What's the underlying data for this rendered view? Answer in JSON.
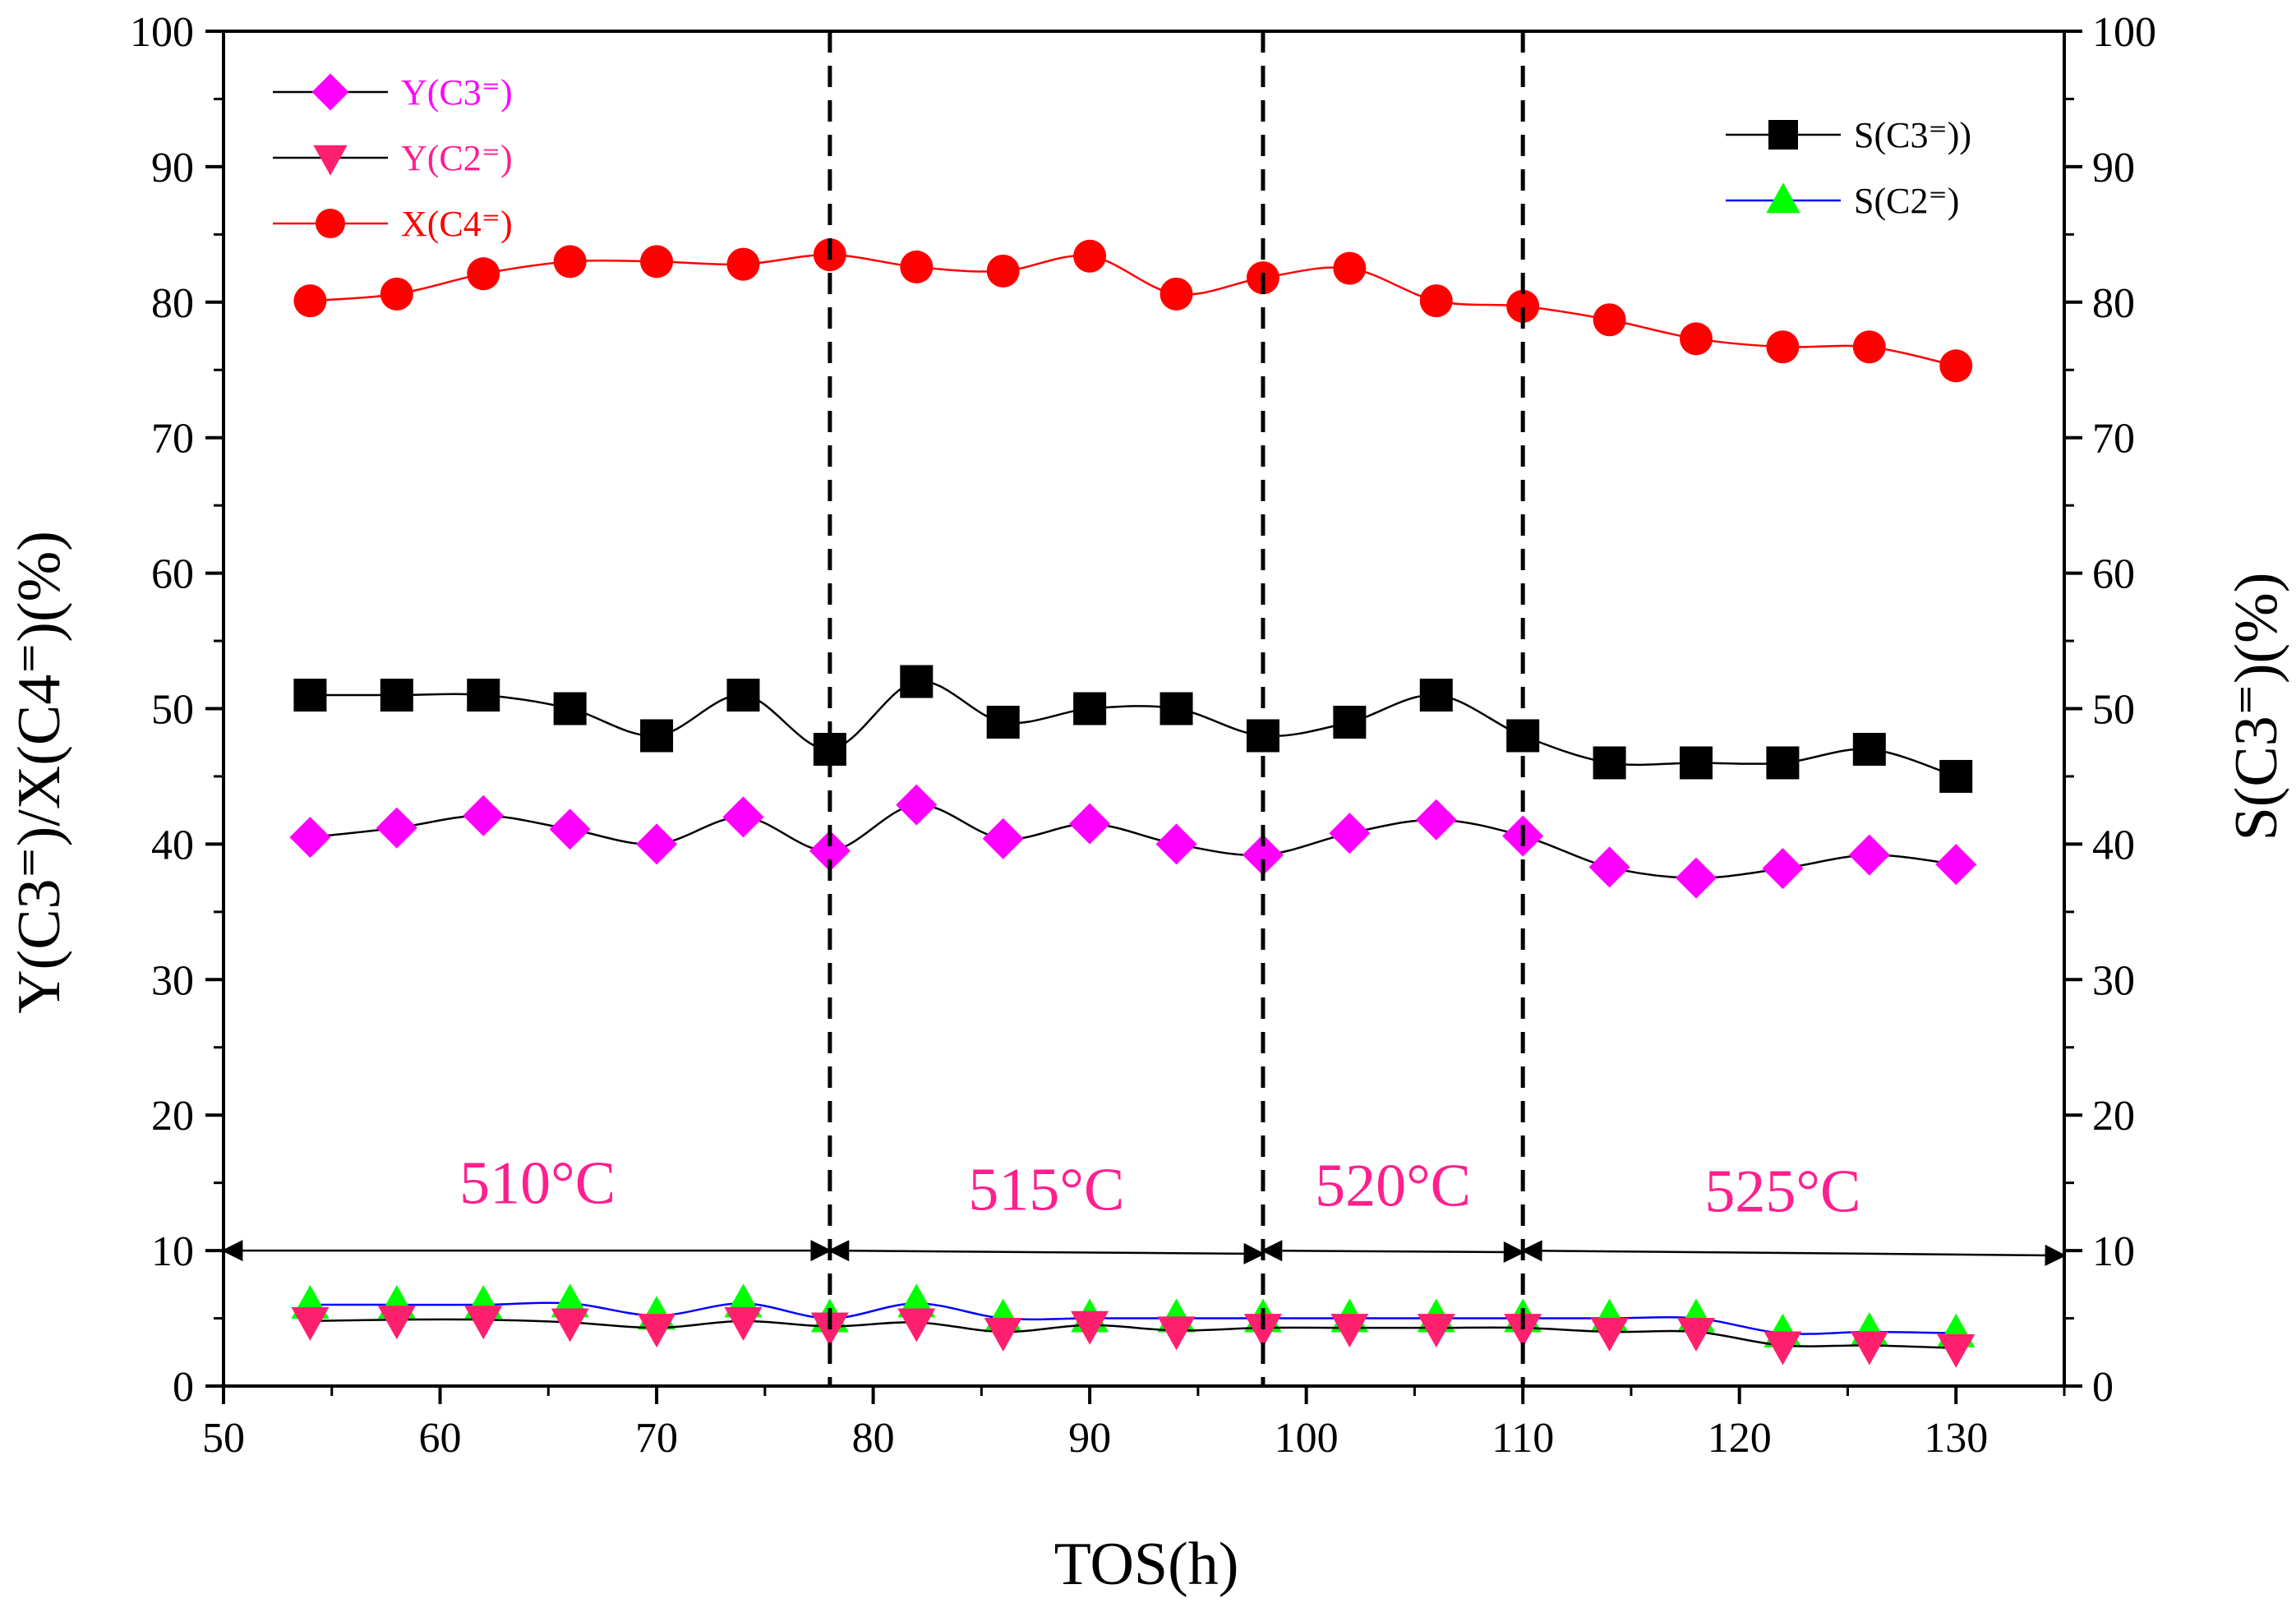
{
  "chart_data": {
    "type": "line",
    "xlabel": "TOS(h)",
    "ylabel_left": "Y(C3⁼)/X(C4⁼)(%)",
    "ylabel_right": "S(C3⁼)(%)",
    "xlim": [
      50,
      135
    ],
    "ylim": [
      0,
      100
    ],
    "x_ticks": [
      "50",
      "60",
      "70",
      "80",
      "90",
      "100",
      "110",
      "120",
      "130"
    ],
    "y_ticks": [
      "0",
      "10",
      "20",
      "30",
      "40",
      "50",
      "60",
      "70",
      "80",
      "90",
      "100"
    ],
    "x": [
      54,
      58,
      62,
      66,
      70,
      74,
      78,
      82,
      86,
      90,
      94,
      98,
      102,
      106,
      110,
      114,
      118,
      122,
      126,
      130
    ],
    "series": [
      {
        "name": "X(C4⁼)",
        "marker": "circle",
        "color": "#ff0000",
        "line_color": "#ff0000",
        "label_color": "#ff0000",
        "values": [
          80.1,
          80.6,
          82.1,
          83.0,
          83.0,
          82.8,
          83.5,
          82.6,
          82.3,
          83.4,
          80.6,
          81.8,
          82.5,
          80.1,
          79.7,
          78.7,
          77.3,
          76.7,
          76.7,
          75.3
        ]
      },
      {
        "name": "S(C3⁼))",
        "marker": "square",
        "color": "#000000",
        "line_color": "#000000",
        "label_color": "#000000",
        "values": [
          51,
          51,
          51,
          50,
          48,
          51,
          47,
          52,
          49,
          50,
          50,
          48,
          49,
          51,
          48,
          46,
          46,
          46,
          47,
          45
        ]
      },
      {
        "name": "Y(C3⁼)",
        "marker": "diamond",
        "color": "#ff00ff",
        "line_color": "#000000",
        "label_color": "#ff00ff",
        "values": [
          40.5,
          41.2,
          42.1,
          41.1,
          40.0,
          42.0,
          39.5,
          42.9,
          40.4,
          41.5,
          40.0,
          39.2,
          40.8,
          41.8,
          40.6,
          38.3,
          37.5,
          38.2,
          39.2,
          38.5
        ]
      },
      {
        "name": "S(C2⁼)",
        "marker": "triangle-up",
        "color": "#00ff00",
        "line_color": "#0000ff",
        "label_color": "#000000",
        "values": [
          6.0,
          6.0,
          6.0,
          6.1,
          5.2,
          6.1,
          5.0,
          6.1,
          5.0,
          5.0,
          5.0,
          5.0,
          5.0,
          5.0,
          5.0,
          5.0,
          5.0,
          3.9,
          4.0,
          3.9
        ]
      },
      {
        "name": "Y(C2⁼)",
        "marker": "triangle-down",
        "color": "#ff1f6f",
        "line_color": "#000000",
        "label_color": "#ff1f8f",
        "values": [
          4.8,
          4.9,
          4.9,
          4.7,
          4.3,
          4.8,
          4.4,
          4.7,
          4.0,
          4.5,
          4.1,
          4.3,
          4.3,
          4.3,
          4.3,
          4.0,
          4.0,
          3.0,
          3.0,
          2.8
        ]
      }
    ],
    "legend_left": [
      "Y(C3⁼)",
      "Y(C2⁼)",
      "X(C4⁼)"
    ],
    "legend_right": [
      "S(C3⁼))",
      "S(C2⁼)"
    ],
    "dividers_x": [
      78,
      98,
      110
    ],
    "regions": [
      {
        "label": "510°C",
        "x_start": 50,
        "x_end": 78,
        "label_x": 64.5,
        "label_y": 13.5
      },
      {
        "label": "515°C",
        "x_start": 78,
        "x_end": 98,
        "label_x": 88,
        "label_y": 13.0
      },
      {
        "label": "520°C",
        "x_start": 98,
        "x_end": 110,
        "label_x": 104,
        "label_y": 13.3
      },
      {
        "label": "525°C",
        "x_start": 110,
        "x_end": 135,
        "label_x": 122,
        "label_y": 12.9
      }
    ],
    "region_arrow_y": 10
  }
}
